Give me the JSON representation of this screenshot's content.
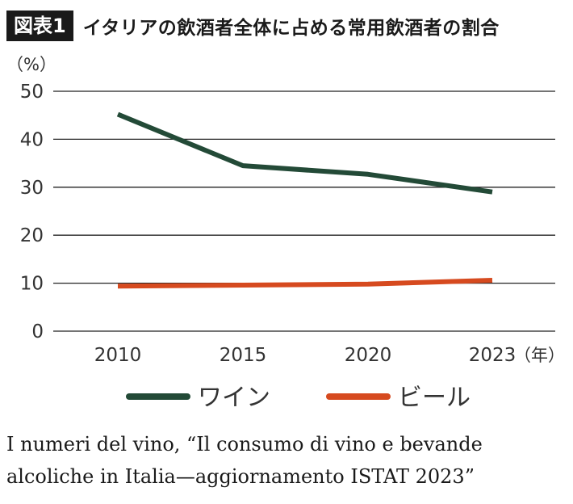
{
  "figure": {
    "badge": "図表1",
    "title": "イタリアの飲酒者全体に占める常用飲酒者の割合"
  },
  "chart_data": {
    "type": "line",
    "x": [
      "2010",
      "2015",
      "2020",
      "2023"
    ],
    "x_unit": "（年）",
    "y_unit": "（%）",
    "ylim": [
      0,
      50
    ],
    "yticks": [
      0,
      10,
      20,
      30,
      40,
      50
    ],
    "grid": true,
    "legend_position": "bottom-center",
    "series": [
      {
        "name": "ワイン",
        "color": "#234a37",
        "values": [
          45.2,
          34.5,
          32.7,
          29.0
        ]
      },
      {
        "name": "ビール",
        "color": "#d64a1f",
        "values": [
          9.4,
          9.6,
          9.8,
          10.6
        ]
      }
    ]
  },
  "source": {
    "line1": "I numeri del vino, “Il consumo di vino e bevande",
    "line2": "alcoliche in Italia—aggiornamento ISTAT 2023”"
  }
}
